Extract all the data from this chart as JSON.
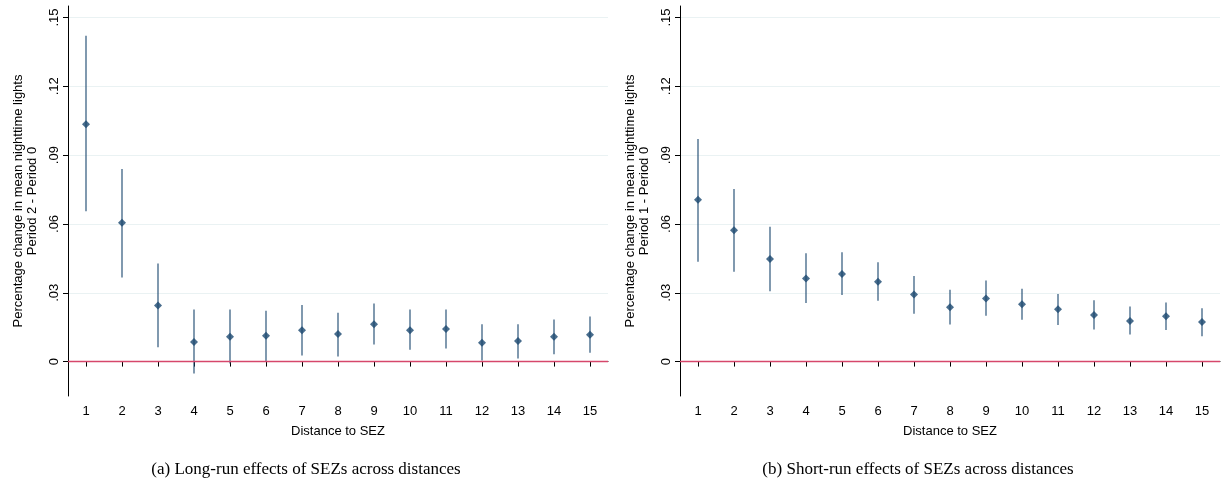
{
  "chart_data": [
    {
      "type": "scatter",
      "title": "(a) Long-run effects of SEZs across distances",
      "xlabel": "Distance to SEZ",
      "ylabel": "Percentage change in mean nighttime lights\nPeriod 2 - Period 0",
      "x": [
        1,
        2,
        3,
        4,
        5,
        6,
        7,
        8,
        9,
        10,
        11,
        12,
        13,
        14,
        15
      ],
      "series": [
        {
          "color": "#1a476f",
          "values": [
            0.1035,
            0.0605,
            0.0245,
            0.0085,
            0.0108,
            0.0113,
            0.0137,
            0.012,
            0.0163,
            0.0137,
            0.0142,
            0.0082,
            0.009,
            0.0108,
            0.0117
          ],
          "errors": [
            [
              0.0655,
              0.142
            ],
            [
              0.0367,
              0.084
            ],
            [
              0.0062,
              0.0428
            ],
            [
              -0.0052,
              0.0227
            ],
            [
              -0.0008,
              0.0227
            ],
            [
              -0.0002,
              0.0222
            ],
            [
              0.0027,
              0.0247
            ],
            [
              0.0022,
              0.0213
            ],
            [
              0.0075,
              0.0253
            ],
            [
              0.0052,
              0.0227
            ],
            [
              0.0057,
              0.0227
            ],
            [
              0.0005,
              0.0163
            ],
            [
              0.0013,
              0.0163
            ],
            [
              0.0032,
              0.0183
            ],
            [
              0.0038,
              0.0197
            ]
          ]
        }
      ],
      "xlim": [
        0.5,
        15.5
      ],
      "xticks": [
        1,
        2,
        3,
        4,
        5,
        6,
        7,
        8,
        9,
        10,
        11,
        12,
        13,
        14,
        15
      ],
      "ylim": [
        -0.015,
        0.155
      ],
      "yticks": [
        0,
        {
          "value": 0.03,
          "label": ".03"
        },
        {
          "value": 0.06,
          "label": ".06"
        },
        {
          "value": 0.09,
          "label": ".09"
        },
        {
          "value": 0.12,
          "label": ".12"
        },
        {
          "value": 0.15,
          "label": ".15"
        }
      ],
      "ref_lines": [
        {
          "axis": "y",
          "value": 0,
          "color": "#d6476b"
        }
      ],
      "grid": "y",
      "marker": "diamond"
    },
    {
      "type": "scatter",
      "title": "(b) Short-run effects of SEZs across distances",
      "xlabel": "Distance to SEZ",
      "ylabel": "Percentage change in mean nighttime lights\nPeriod 1 - Period 0",
      "x": [
        1,
        2,
        3,
        4,
        5,
        6,
        7,
        8,
        9,
        10,
        11,
        12,
        13,
        14,
        15
      ],
      "series": [
        {
          "color": "#1a476f",
          "values": [
            0.0705,
            0.0572,
            0.0447,
            0.0362,
            0.0382,
            0.0348,
            0.0292,
            0.0237,
            0.0275,
            0.025,
            0.0228,
            0.0203,
            0.0177,
            0.0198,
            0.0173
          ],
          "errors": [
            [
              0.0435,
              0.097
            ],
            [
              0.0392,
              0.0752
            ],
            [
              0.0307,
              0.0588
            ],
            [
              0.0255,
              0.0472
            ],
            [
              0.029,
              0.0477
            ],
            [
              0.0265,
              0.0433
            ],
            [
              0.0208,
              0.0373
            ],
            [
              0.0162,
              0.0313
            ],
            [
              0.02,
              0.0353
            ],
            [
              0.0182,
              0.0318
            ],
            [
              0.016,
              0.0295
            ],
            [
              0.014,
              0.0267
            ],
            [
              0.0118,
              0.024
            ],
            [
              0.0138,
              0.0258
            ],
            [
              0.011,
              0.0232
            ]
          ]
        }
      ],
      "xlim": [
        0.5,
        15.5
      ],
      "xticks": [
        1,
        2,
        3,
        4,
        5,
        6,
        7,
        8,
        9,
        10,
        11,
        12,
        13,
        14,
        15
      ],
      "ylim": [
        -0.015,
        0.155
      ],
      "yticks": [
        0,
        {
          "value": 0.03,
          "label": ".03"
        },
        {
          "value": 0.06,
          "label": ".06"
        },
        {
          "value": 0.09,
          "label": ".09"
        },
        {
          "value": 0.12,
          "label": ".12"
        },
        {
          "value": 0.15,
          "label": ".15"
        }
      ],
      "ref_lines": [
        {
          "axis": "y",
          "value": 0,
          "color": "#d6476b"
        }
      ],
      "grid": "y",
      "marker": "diamond"
    }
  ]
}
